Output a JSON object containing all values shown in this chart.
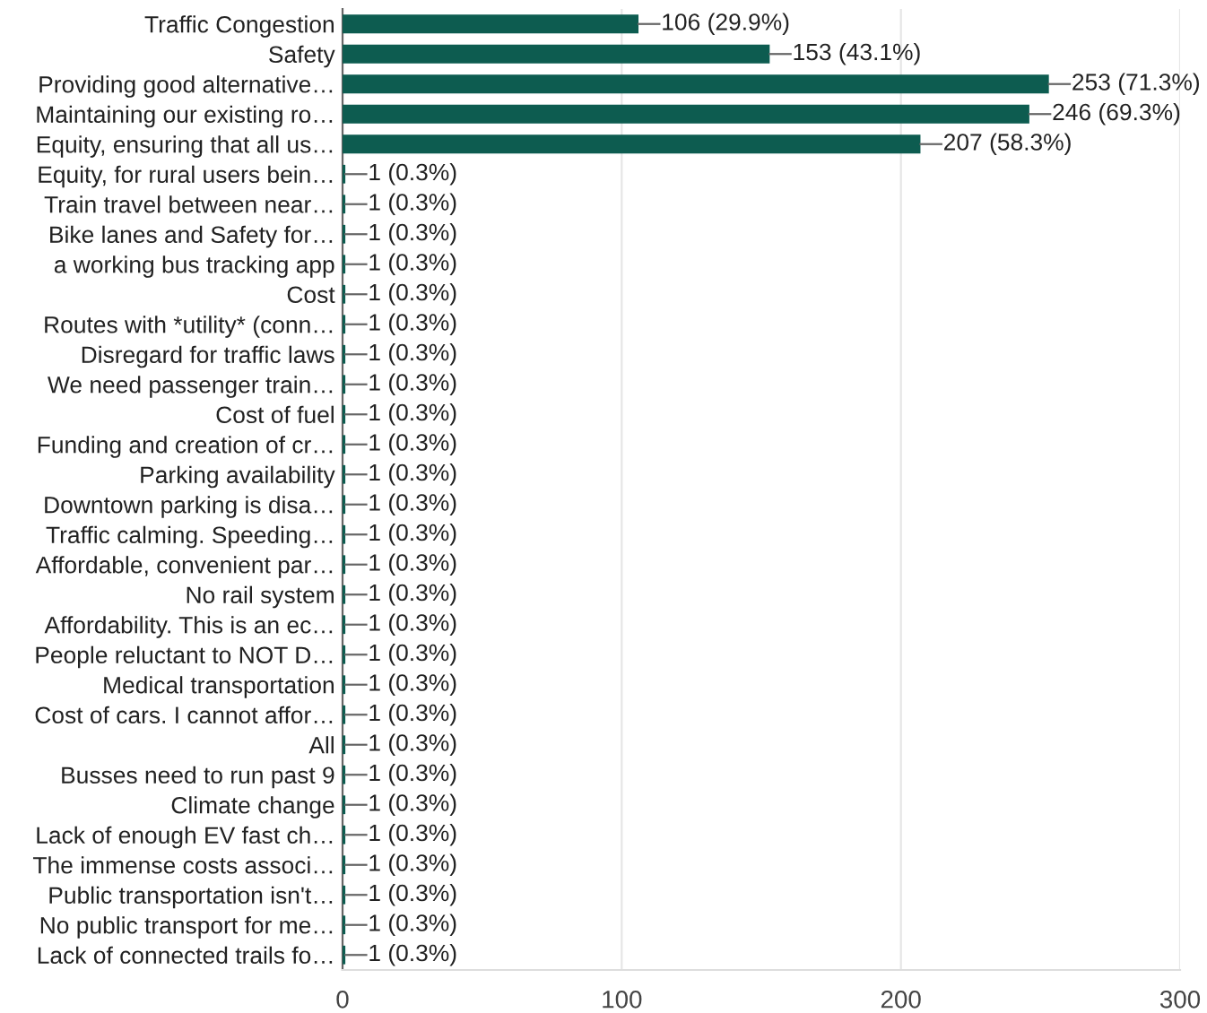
{
  "chart_data": {
    "type": "bar",
    "orientation": "horizontal",
    "color": "#0d5c50",
    "categories": [
      "Traffic Congestion",
      "Safety",
      "Providing good alternative…",
      "Maintaining our existing ro…",
      "Equity, ensuring that all us…",
      "Equity, for rural users bein…",
      "Train travel between near…",
      "Bike lanes and Safety for…",
      "a working bus tracking app",
      "Cost",
      "Routes with *utility* (conn…",
      "Disregard for traffic laws",
      "We need passenger train…",
      "Cost of fuel",
      "Funding and creation of cr…",
      "Parking availability",
      "Downtown parking is disa…",
      "Traffic calming. Speeding…",
      "Affordable, convenient par…",
      "No rail system",
      "Affordability. This is an ec…",
      "People reluctant to NOT D…",
      "Medical transportation",
      "Cost of cars. I cannot affor…",
      "All",
      "Busses need to run past 9",
      "Climate change",
      "Lack of enough EV fast ch…",
      "The immense costs associ…",
      "Public transportation isn't…",
      "No public transport for me…",
      "Lack of connected trails fo…"
    ],
    "values": [
      106,
      153,
      253,
      246,
      207,
      1,
      1,
      1,
      1,
      1,
      1,
      1,
      1,
      1,
      1,
      1,
      1,
      1,
      1,
      1,
      1,
      1,
      1,
      1,
      1,
      1,
      1,
      1,
      1,
      1,
      1,
      1
    ],
    "value_labels": [
      "106 (29.9%)",
      "153 (43.1%)",
      "253 (71.3%)",
      "246 (69.3%)",
      "207 (58.3%)",
      "1 (0.3%)",
      "1 (0.3%)",
      "1 (0.3%)",
      "1 (0.3%)",
      "1 (0.3%)",
      "1 (0.3%)",
      "1 (0.3%)",
      "1 (0.3%)",
      "1 (0.3%)",
      "1 (0.3%)",
      "1 (0.3%)",
      "1 (0.3%)",
      "1 (0.3%)",
      "1 (0.3%)",
      "1 (0.3%)",
      "1 (0.3%)",
      "1 (0.3%)",
      "1 (0.3%)",
      "1 (0.3%)",
      "1 (0.3%)",
      "1 (0.3%)",
      "1 (0.3%)",
      "1 (0.3%)",
      "1 (0.3%)",
      "1 (0.3%)",
      "1 (0.3%)",
      "1 (0.3%)"
    ],
    "xlim": [
      0,
      300
    ],
    "xticks": [
      0,
      100,
      200,
      300
    ],
    "grid": "x"
  }
}
